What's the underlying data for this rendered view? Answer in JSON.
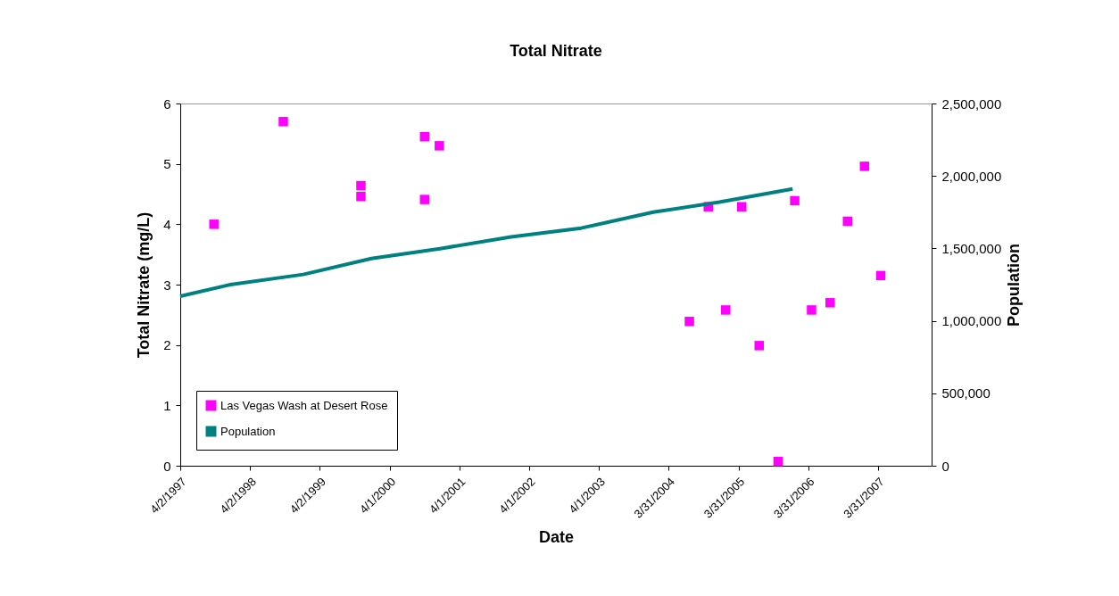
{
  "chart_data": {
    "type": "scatter",
    "title": "Total Nitrate",
    "xlabel": "Date",
    "ylabel": "Total Nitrate (mg/L)",
    "y2label": "Population",
    "legend": "bottom left",
    "xlim": [
      "1997-04-02",
      "2008-01-05"
    ],
    "xticks": [
      {
        "value": "1997-04-02",
        "label": "4/2/1997"
      },
      {
        "value": "1998-04-02",
        "label": "4/2/1998"
      },
      {
        "value": "1999-04-02",
        "label": "4/2/1999"
      },
      {
        "value": "2000-04-01",
        "label": "4/1/2000"
      },
      {
        "value": "2001-04-01",
        "label": "4/1/2001"
      },
      {
        "value": "2002-04-01",
        "label": "4/1/2002"
      },
      {
        "value": "2003-04-01",
        "label": "4/1/2003"
      },
      {
        "value": "2004-03-31",
        "label": "3/31/2004"
      },
      {
        "value": "2005-03-31",
        "label": "3/31/2005"
      },
      {
        "value": "2006-03-31",
        "label": "3/31/2006"
      },
      {
        "value": "2007-03-31",
        "label": "3/31/2007"
      }
    ],
    "ylim": [
      0,
      6
    ],
    "yticks": [
      0,
      1,
      2,
      3,
      4,
      5,
      6
    ],
    "y2lim": [
      0,
      2500000
    ],
    "y2ticks": [
      0,
      {
        "value": 500000,
        "label": "500,000"
      },
      {
        "value": 1000000,
        "label": "1,000,000"
      },
      {
        "value": 1500000,
        "label": "1,500,000"
      },
      {
        "value": 2000000,
        "label": "2,000,000"
      },
      {
        "value": 2500000,
        "label": "2,500,000"
      }
    ],
    "series": [
      {
        "name": "Las Vegas Wash at Desert Rose",
        "marker": "square",
        "color": "#ff00ff",
        "x": [
          "1997-09-25",
          "1998-09-23",
          "1999-11-03",
          "1999-11-03",
          "2000-10-01",
          "2000-12-17",
          "2000-10-01",
          "2004-07-17",
          "2004-10-24",
          "2005-01-23",
          "2005-04-17",
          "2005-07-17",
          "2005-10-24",
          "2006-01-19",
          "2006-04-17",
          "2006-07-23",
          "2006-10-22",
          "2007-01-19",
          "2007-04-14"
        ],
        "values": [
          4.0,
          5.7,
          4.64,
          4.46,
          5.45,
          5.3,
          4.41,
          2.39,
          4.29,
          2.58,
          4.29,
          1.99,
          0.07,
          4.39,
          2.58,
          2.7,
          4.05,
          4.96,
          3.15
        ]
      },
      {
        "name": "Population",
        "type": "line",
        "axis": "y2",
        "color": "#008080",
        "x": [
          "1997-04-02",
          "1997-12-20",
          "1999-01-05",
          "1999-12-28",
          "2000-12-28",
          "2001-12-28",
          "2002-12-29",
          "2004-01-10",
          "2004-12-21",
          "2006-01-08"
        ],
        "values": [
          1170000,
          1250000,
          1320000,
          1430000,
          1500000,
          1580000,
          1640000,
          1750000,
          1820000,
          1910000
        ]
      }
    ]
  }
}
